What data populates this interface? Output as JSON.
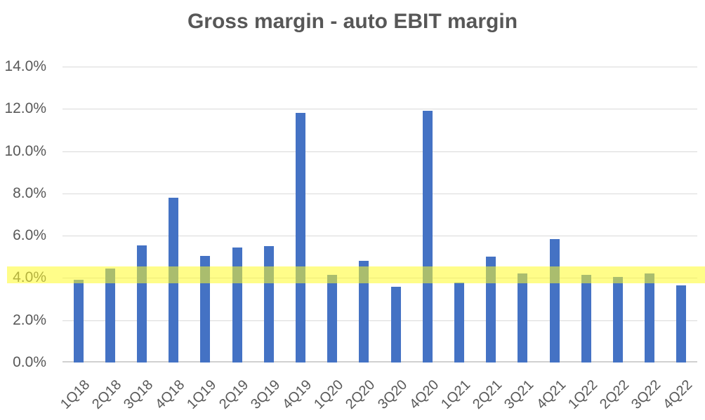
{
  "chart_data": {
    "type": "bar",
    "title": "Gross margin - auto EBIT margin",
    "categories": [
      "1Q18",
      "2Q18",
      "3Q18",
      "4Q18",
      "1Q19",
      "2Q19",
      "3Q19",
      "4Q19",
      "1Q20",
      "2Q20",
      "3Q20",
      "4Q20",
      "1Q21",
      "2Q21",
      "3Q21",
      "4Q21",
      "1Q22",
      "2Q22",
      "3Q22",
      "4Q22"
    ],
    "values": [
      3.9,
      4.45,
      5.55,
      7.8,
      5.05,
      5.45,
      5.5,
      11.8,
      4.15,
      4.8,
      3.6,
      11.9,
      3.8,
      5.0,
      4.2,
      5.85,
      4.15,
      4.05,
      4.2,
      3.65
    ],
    "value_unit": "percent",
    "xlabel": "",
    "ylabel": "",
    "ylim": [
      0,
      14
    ],
    "ytick_values": [
      0,
      2,
      4,
      6,
      8,
      10,
      12,
      14
    ],
    "ytick_labels": [
      "0.0%",
      "2.0%",
      "4.0%",
      "6.0%",
      "8.0%",
      "10.0%",
      "12.0%",
      "14.0%"
    ],
    "grid": true,
    "legend": "none",
    "x_label_rotation_deg": 45,
    "bar_color": "#4472C4",
    "gridline_color": "#D9D9D9",
    "axis_text_color": "#595959",
    "title_color": "#575757",
    "highlight_band": {
      "y_from_percent": 3.75,
      "y_to_percent": 4.55,
      "color": "#FFFC28",
      "opacity": 0.55
    }
  }
}
